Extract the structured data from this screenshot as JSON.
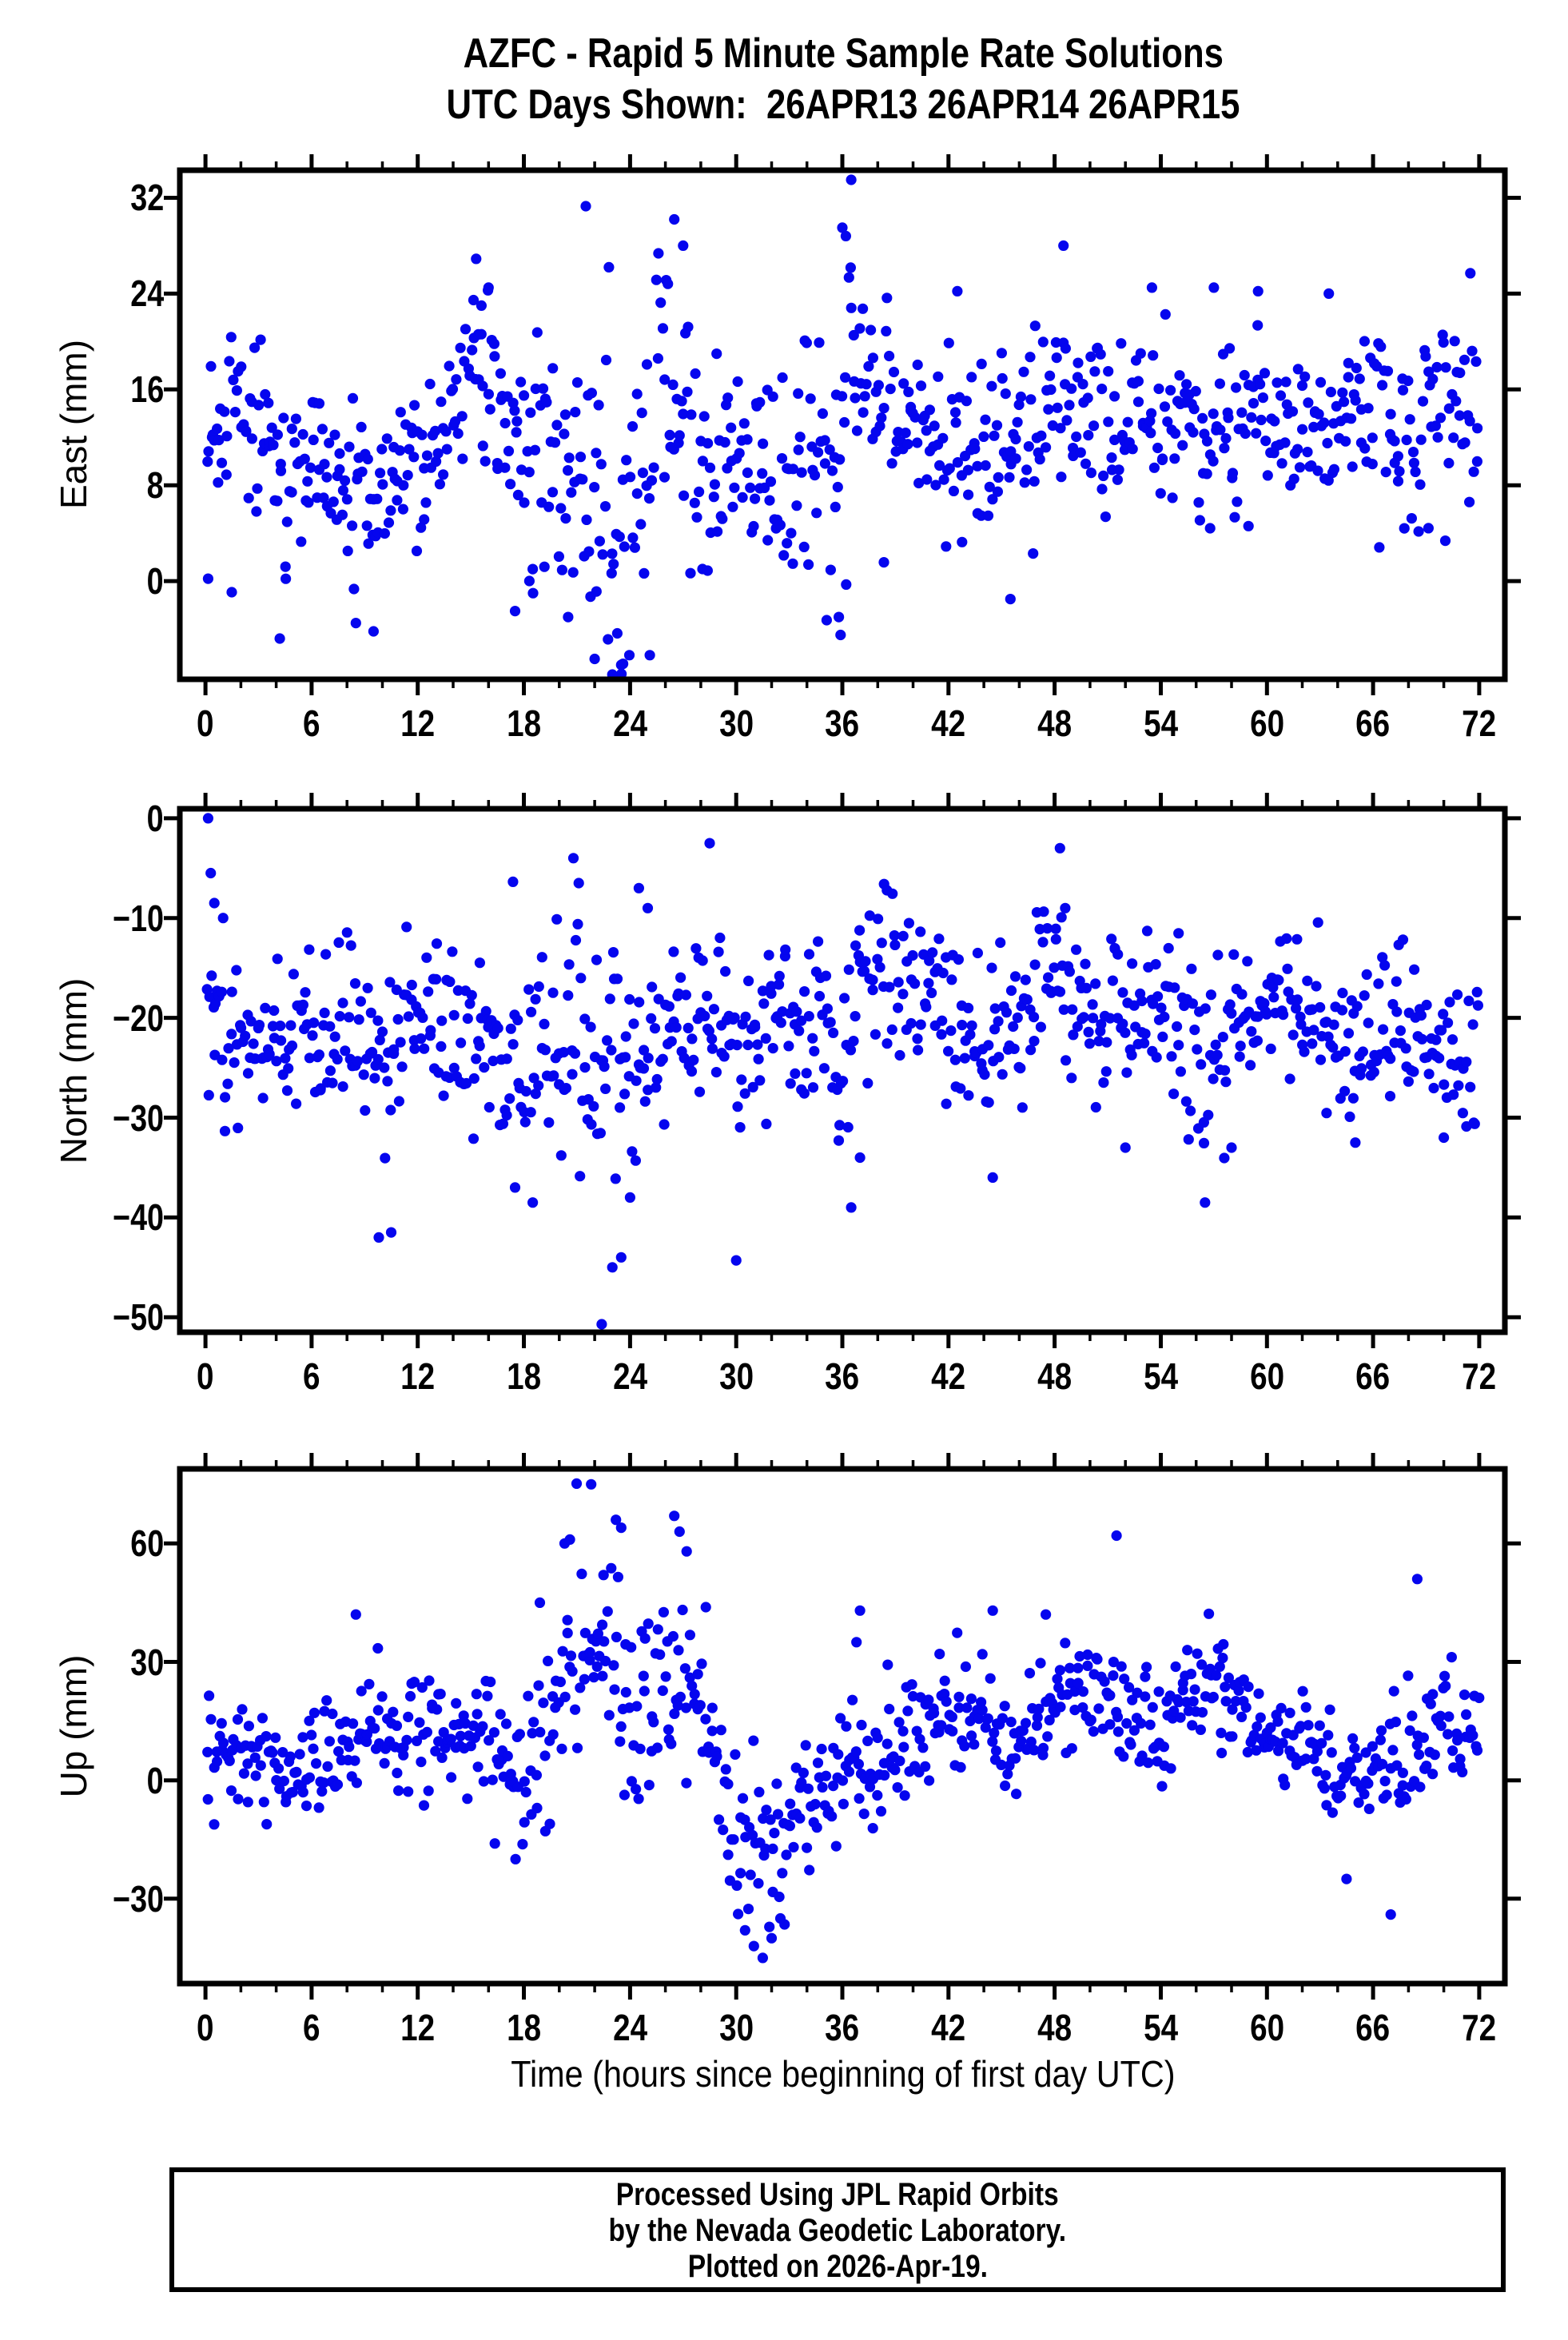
{
  "header": {
    "title_line1": "AZFC - Rapid 5 Minute Sample Rate Solutions",
    "title_line2": "UTC Days Shown:  26APR13 26APR14 26APR15"
  },
  "footer": {
    "lines": [
      "Processed Using JPL Rapid Orbits",
      "by the Nevada Geodetic Laboratory.",
      "Plotted on 2026-Apr-19."
    ]
  },
  "chart_data": {
    "type": "scatter",
    "title": "AZFC - Rapid 5 Minute Sample Rate Solutions",
    "subtitle": "UTC Days Shown:  26APR13 26APR14 26APR15",
    "xlabel": "Time (hours since beginning of first day UTC)",
    "marker": {
      "shape": "circle",
      "color": "#0505ee",
      "radius_px": 6.6
    },
    "frame_color": "#000000",
    "grid": false,
    "legend": "none",
    "x_axis": {
      "lim": [
        -1.45,
        73.45
      ],
      "major_ticks": [
        0,
        6,
        12,
        18,
        24,
        30,
        36,
        42,
        48,
        54,
        60,
        66,
        72
      ],
      "major_tick_labels": [
        "0",
        "6",
        "12",
        "18",
        "24",
        "30",
        "36",
        "42",
        "48",
        "54",
        "60",
        "66",
        "72"
      ],
      "minor_step": 2
    },
    "panels": [
      {
        "id": "east",
        "ylabel": "East (mm)",
        "ylim": [
          -8.2,
          34.3
        ],
        "yticks": [
          {
            "v": 0,
            "label": "0"
          },
          {
            "v": 8,
            "label": "8"
          },
          {
            "v": 16,
            "label": "16"
          },
          {
            "v": 24,
            "label": "24"
          },
          {
            "v": 32,
            "label": "32"
          }
        ],
        "points_spec": {
          "note": "estimated reconstruction of ~800 five-minute GPS solutions; envelope rows are [hour, center_mm, spread_mm]",
          "seed": 41,
          "n": 800,
          "t_range": [
            0.08,
            71.95
          ],
          "envelope": [
            [
              0,
              13,
              4
            ],
            [
              2,
              14,
              4
            ],
            [
              4,
              8,
              3.5
            ],
            [
              6,
              11,
              3
            ],
            [
              8,
              7.5,
              3
            ],
            [
              10,
              6.5,
              3
            ],
            [
              12,
              10,
              4
            ],
            [
              14,
              14,
              3.5
            ],
            [
              15,
              19,
              3
            ],
            [
              16,
              15,
              4
            ],
            [
              18,
              9,
              5
            ],
            [
              20,
              10,
              6
            ],
            [
              22,
              6,
              8
            ],
            [
              24,
              7,
              9
            ],
            [
              26,
              17,
              7
            ],
            [
              28,
              9,
              5
            ],
            [
              30,
              11,
              4.5
            ],
            [
              32,
              10,
              5
            ],
            [
              34,
              10,
              5
            ],
            [
              36,
              12,
              9
            ],
            [
              37,
              20,
              5
            ],
            [
              38,
              17,
              5
            ],
            [
              40,
              14,
              4
            ],
            [
              42,
              12,
              5
            ],
            [
              44,
              11,
              4
            ],
            [
              46,
              12,
              4
            ],
            [
              48,
              15,
              4
            ],
            [
              50,
              14,
              3.5
            ],
            [
              52,
              12,
              4
            ],
            [
              54,
              15,
              3.5
            ],
            [
              56,
              12,
              4
            ],
            [
              58,
              12,
              4
            ],
            [
              60,
              15,
              3
            ],
            [
              62,
              13,
              3
            ],
            [
              64,
              14,
              3
            ],
            [
              66,
              12,
              4
            ],
            [
              68,
              13,
              4
            ],
            [
              70,
              12,
              4
            ],
            [
              72,
              15,
              4
            ]
          ]
        },
        "outliers": [
          [
            0.15,
            0.2
          ],
          [
            4.2,
            -4.8
          ],
          [
            8.5,
            -3.5
          ],
          [
            9.5,
            -4.2
          ],
          [
            15.3,
            26.9
          ],
          [
            15.6,
            23
          ],
          [
            16,
            24.5
          ],
          [
            17.5,
            -2.5
          ],
          [
            18.5,
            1
          ],
          [
            20.5,
            -3
          ],
          [
            21.5,
            31.3
          ],
          [
            22,
            -6.5
          ],
          [
            23,
            -7.8
          ],
          [
            23.5,
            -7
          ],
          [
            26.5,
            30.2
          ],
          [
            27,
            28
          ],
          [
            35.8,
            -3
          ],
          [
            35.9,
            -4.5
          ],
          [
            36,
            29.5
          ],
          [
            36.2,
            28.8
          ],
          [
            36.5,
            33.5
          ],
          [
            42.5,
            24.2
          ],
          [
            45.5,
            -1.5
          ],
          [
            48.5,
            28
          ],
          [
            53.5,
            24.5
          ],
          [
            57,
            24.5
          ],
          [
            59.5,
            24.2
          ],
          [
            63.5,
            24
          ],
          [
            71.5,
            25.7
          ]
        ]
      },
      {
        "id": "north",
        "ylabel": "North (mm)",
        "ylim": [
          -51.5,
          0.95
        ],
        "yticks": [
          {
            "v": 0,
            "label": "0"
          },
          {
            "v": -10,
            "label": "−10"
          },
          {
            "v": -20,
            "label": "−20"
          },
          {
            "v": -30,
            "label": "−30"
          },
          {
            "v": -40,
            "label": "−40"
          },
          {
            "v": -50,
            "label": "−50"
          }
        ],
        "points_spec": {
          "note": "estimated reconstruction; envelope rows are [hour, center_mm, spread_mm]",
          "seed": 42,
          "n": 800,
          "t_range": [
            0.08,
            71.95
          ],
          "envelope": [
            [
              0,
              -20,
              4
            ],
            [
              2,
              -24,
              4
            ],
            [
              4,
              -21,
              4
            ],
            [
              6,
              -22,
              4
            ],
            [
              8,
              -21,
              4.5
            ],
            [
              10,
              -23,
              5
            ],
            [
              12,
              -20,
              4
            ],
            [
              14,
              -21,
              4
            ],
            [
              16,
              -24,
              4
            ],
            [
              18,
              -25,
              5
            ],
            [
              20,
              -20,
              5.5
            ],
            [
              22,
              -24,
              7
            ],
            [
              24,
              -25,
              6
            ],
            [
              26,
              -21,
              5
            ],
            [
              28,
              -18,
              5
            ],
            [
              30,
              -23,
              6
            ],
            [
              32,
              -20,
              4
            ],
            [
              34,
              -20,
              4
            ],
            [
              36,
              -23,
              6
            ],
            [
              37,
              -14,
              4
            ],
            [
              38,
              -16,
              4
            ],
            [
              40,
              -17,
              4
            ],
            [
              42,
              -21,
              4
            ],
            [
              44,
              -22,
              4.5
            ],
            [
              46,
              -21,
              4
            ],
            [
              48,
              -15,
              4
            ],
            [
              50,
              -20,
              4
            ],
            [
              52,
              -20,
              4
            ],
            [
              54,
              -18,
              4
            ],
            [
              56,
              -25,
              5
            ],
            [
              58,
              -22,
              4
            ],
            [
              60,
              -18,
              3
            ],
            [
              62,
              -19,
              3
            ],
            [
              64,
              -22,
              4
            ],
            [
              66,
              -23,
              4
            ],
            [
              68,
              -20,
              3.5
            ],
            [
              70,
              -24,
              4
            ],
            [
              72,
              -25,
              4
            ]
          ]
        },
        "outliers": [
          [
            0.15,
            0
          ],
          [
            0.3,
            -5.5
          ],
          [
            0.5,
            -8.5
          ],
          [
            1,
            -10
          ],
          [
            9.8,
            -42
          ],
          [
            10.5,
            -41.5
          ],
          [
            17.5,
            -37
          ],
          [
            18.5,
            -38.5
          ],
          [
            20.8,
            -4
          ],
          [
            21.1,
            -6.5
          ],
          [
            22.4,
            -50.7
          ],
          [
            23,
            -45
          ],
          [
            23.5,
            -44
          ],
          [
            24,
            -38
          ],
          [
            24.5,
            -7
          ],
          [
            25,
            -9
          ],
          [
            28.5,
            -2.5
          ],
          [
            30,
            -44.3
          ],
          [
            36.5,
            -39
          ],
          [
            37,
            -34
          ],
          [
            44.5,
            -36
          ],
          [
            48.3,
            -3
          ],
          [
            48.6,
            -9
          ],
          [
            52,
            -33
          ],
          [
            56.5,
            -38.5
          ],
          [
            58,
            -33
          ],
          [
            65,
            -32.5
          ],
          [
            70,
            -32
          ]
        ]
      },
      {
        "id": "up",
        "ylabel": "Up (mm)",
        "ylim": [
          -51.5,
          78.9
        ],
        "yticks": [
          {
            "v": 60,
            "label": "60"
          },
          {
            "v": 30,
            "label": "30"
          },
          {
            "v": 0,
            "label": "0"
          },
          {
            "v": -30,
            "label": "−30"
          }
        ],
        "points_spec": {
          "note": "estimated reconstruction; envelope rows are [hour, center_mm, spread_mm]",
          "seed": 43,
          "n": 800,
          "t_range": [
            0.08,
            71.95
          ],
          "envelope": [
            [
              0,
              8,
              8
            ],
            [
              2,
              5,
              8
            ],
            [
              4,
              3,
              7
            ],
            [
              6,
              3,
              8
            ],
            [
              8,
              11,
              8
            ],
            [
              10,
              10,
              7
            ],
            [
              12,
              12,
              7
            ],
            [
              14,
              12,
              7.5
            ],
            [
              16,
              10,
              8
            ],
            [
              18,
              -3,
              9
            ],
            [
              20,
              22,
              13
            ],
            [
              22,
              38,
              13
            ],
            [
              24,
              18,
              13
            ],
            [
              26,
              28,
              13
            ],
            [
              28,
              15,
              10
            ],
            [
              30,
              -15,
              10
            ],
            [
              32,
              -22,
              9
            ],
            [
              34,
              -6,
              9
            ],
            [
              36,
              5,
              8
            ],
            [
              38,
              6,
              8
            ],
            [
              40,
              10,
              8
            ],
            [
              42,
              14,
              8
            ],
            [
              44,
              16,
              8
            ],
            [
              46,
              10,
              8
            ],
            [
              48,
              20,
              9
            ],
            [
              50,
              21,
              9
            ],
            [
              52,
              16,
              9
            ],
            [
              54,
              12,
              8
            ],
            [
              56,
              21,
              8
            ],
            [
              58,
              20,
              7
            ],
            [
              60,
              14,
              7
            ],
            [
              62,
              7,
              7
            ],
            [
              64,
              0,
              7
            ],
            [
              66,
              0,
              7
            ],
            [
              68,
              7,
              8
            ],
            [
              70,
              14,
              8
            ],
            [
              72,
              11,
              7
            ]
          ]
        },
        "outliers": [
          [
            8.5,
            42
          ],
          [
            18.9,
            45
          ],
          [
            20.3,
            60
          ],
          [
            20.6,
            61
          ],
          [
            21.8,
            75
          ],
          [
            22.5,
            52
          ],
          [
            23.2,
            66
          ],
          [
            23.5,
            64
          ],
          [
            26.5,
            67
          ],
          [
            26.8,
            63
          ],
          [
            27.2,
            58
          ],
          [
            30.5,
            -38
          ],
          [
            31,
            -42
          ],
          [
            31.5,
            -45
          ],
          [
            32,
            -40
          ],
          [
            32.5,
            -35
          ],
          [
            36.8,
            35
          ],
          [
            37,
            43
          ],
          [
            41.5,
            32
          ],
          [
            44.5,
            43
          ],
          [
            47.5,
            42
          ],
          [
            51.5,
            62
          ],
          [
            55.5,
            33
          ],
          [
            57.5,
            31
          ],
          [
            64.5,
            -25
          ],
          [
            67,
            -34
          ],
          [
            68.5,
            51
          ]
        ]
      }
    ]
  }
}
